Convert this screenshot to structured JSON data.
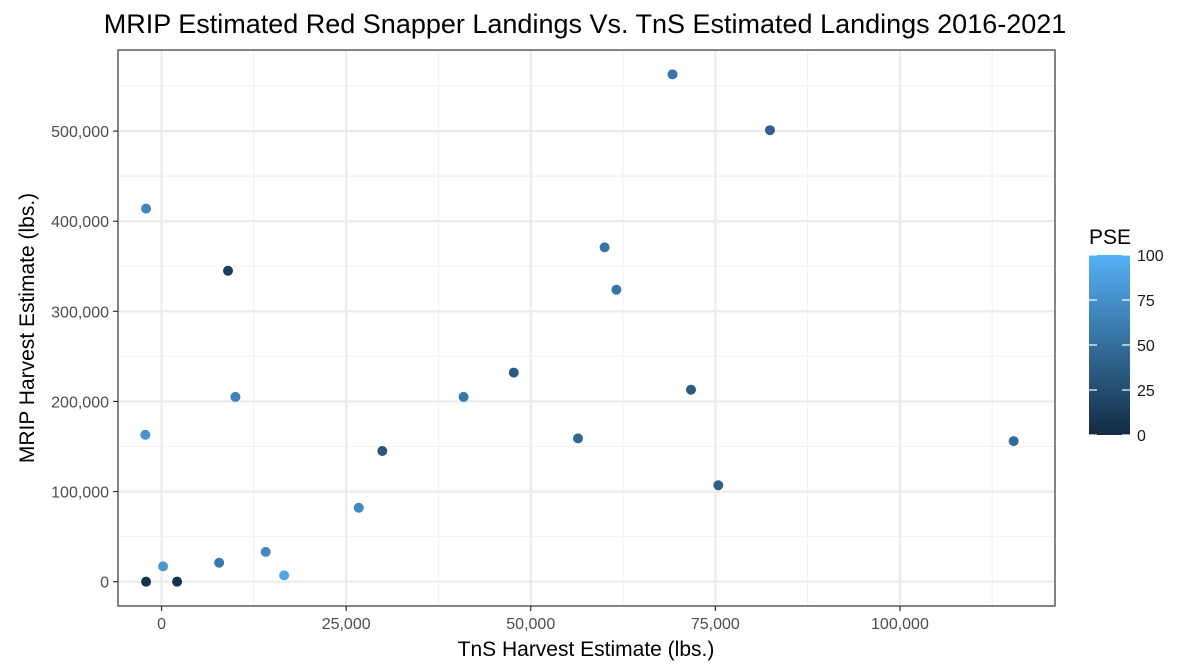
{
  "chart_data": {
    "type": "scatter",
    "title": "MRIP Estimated Red Snapper Landings Vs. TnS Estimated Landings 2016-2021",
    "xlabel": "TnS Harvest Estimate (lbs.)",
    "ylabel": "MRIP Harvest Estimate (lbs.)",
    "xlim": [
      -5900,
      121000
    ],
    "ylim": [
      -27000,
      590000
    ],
    "x_ticks": [
      0,
      25000,
      50000,
      75000,
      100000
    ],
    "x_tick_labels": [
      "0",
      "25,000",
      "50,000",
      "75,000",
      "100,000"
    ],
    "y_ticks": [
      0,
      100000,
      200000,
      300000,
      400000,
      500000
    ],
    "y_tick_labels": [
      "0",
      "100,000",
      "200,000",
      "300,000",
      "400,000",
      "500,000"
    ],
    "grid": true,
    "color_legend": {
      "title": "PSE",
      "min": 0,
      "max": 100,
      "ticks": [
        0,
        25,
        50,
        75,
        100
      ],
      "low_color": "#132B43",
      "high_color": "#56B1F7",
      "placement": "right"
    },
    "points": [
      {
        "x": 69200,
        "y": 563000,
        "pse": 55
      },
      {
        "x": 82400,
        "y": 501000,
        "pse": 40
      },
      {
        "x": -2100,
        "y": 414000,
        "pse": 68
      },
      {
        "x": 60000,
        "y": 371000,
        "pse": 55
      },
      {
        "x": 9000,
        "y": 345000,
        "pse": 15
      },
      {
        "x": 61600,
        "y": 324000,
        "pse": 55
      },
      {
        "x": 47700,
        "y": 232000,
        "pse": 35
      },
      {
        "x": 71700,
        "y": 213000,
        "pse": 35
      },
      {
        "x": 40900,
        "y": 205000,
        "pse": 58
      },
      {
        "x": 10000,
        "y": 205000,
        "pse": 65
      },
      {
        "x": -2200,
        "y": 163000,
        "pse": 78
      },
      {
        "x": 56400,
        "y": 159000,
        "pse": 45
      },
      {
        "x": 115400,
        "y": 156000,
        "pse": 48
      },
      {
        "x": 29900,
        "y": 145000,
        "pse": 32
      },
      {
        "x": 75400,
        "y": 107000,
        "pse": 38
      },
      {
        "x": 26700,
        "y": 82000,
        "pse": 70
      },
      {
        "x": 14100,
        "y": 33000,
        "pse": 70
      },
      {
        "x": 7800,
        "y": 21000,
        "pse": 58
      },
      {
        "x": 200,
        "y": 17000,
        "pse": 80
      },
      {
        "x": 16600,
        "y": 7000,
        "pse": 92
      },
      {
        "x": -2100,
        "y": 0,
        "pse": 5
      },
      {
        "x": 2100,
        "y": 0,
        "pse": 5
      }
    ]
  }
}
